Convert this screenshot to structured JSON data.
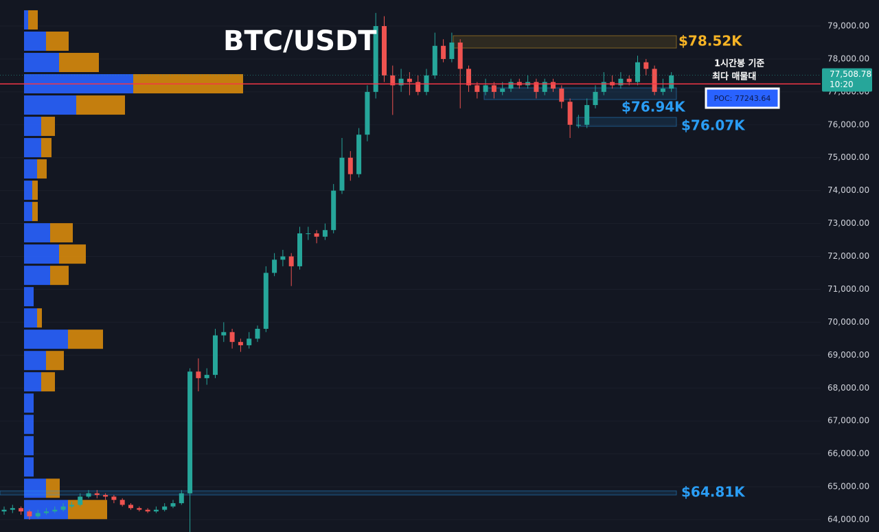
{
  "chart_data": {
    "type": "candlestick",
    "title": "BTC/USDT",
    "annotation": [
      "1시간봉 기준",
      "최다 매물대"
    ],
    "ylim": [
      64000,
      79000
    ],
    "yticks": [
      {
        "value": 79000,
        "label": "79,000.00"
      },
      {
        "value": 78000,
        "label": "78,000.00"
      },
      {
        "value": 77000,
        "label": "77,000.00"
      },
      {
        "value": 76000,
        "label": "76,000.00"
      },
      {
        "value": 75000,
        "label": "75,000.00"
      },
      {
        "value": 74000,
        "label": "74,000.00"
      },
      {
        "value": 73000,
        "label": "73,000.00"
      },
      {
        "value": 72000,
        "label": "72,000.00"
      },
      {
        "value": 71000,
        "label": "71,000.00"
      },
      {
        "value": 70000,
        "label": "70,000.00"
      },
      {
        "value": 69000,
        "label": "69,000.00"
      },
      {
        "value": 68000,
        "label": "68,000.00"
      },
      {
        "value": 67000,
        "label": "67,000.00"
      },
      {
        "value": 66000,
        "label": "66,000.00"
      },
      {
        "value": 65000,
        "label": "65,000.00"
      },
      {
        "value": 64000,
        "label": "64,000.00"
      }
    ],
    "up_color": "#26a69a",
    "down_color": "#ef5350",
    "candles": [
      [
        64250,
        64400,
        64150,
        64300
      ],
      [
        64300,
        64450,
        64200,
        64350
      ],
      [
        64350,
        64400,
        64150,
        64250
      ],
      [
        64250,
        64300,
        64000,
        64100
      ],
      [
        64100,
        64300,
        64050,
        64200
      ],
      [
        64200,
        64350,
        64150,
        64250
      ],
      [
        64250,
        64400,
        64200,
        64300
      ],
      [
        64300,
        64500,
        64250,
        64400
      ],
      [
        64400,
        64550,
        64350,
        64450
      ],
      [
        64450,
        64800,
        64400,
        64700
      ],
      [
        64700,
        64900,
        64650,
        64800
      ],
      [
        64800,
        64900,
        64650,
        64750
      ],
      [
        64750,
        64800,
        64600,
        64700
      ],
      [
        64700,
        64750,
        64500,
        64600
      ],
      [
        64600,
        64650,
        64400,
        64450
      ],
      [
        64450,
        64500,
        64300,
        64350
      ],
      [
        64350,
        64400,
        64250,
        64300
      ],
      [
        64300,
        64350,
        64200,
        64250
      ],
      [
        64250,
        64400,
        64200,
        64300
      ],
      [
        64300,
        64500,
        64250,
        64400
      ],
      [
        64400,
        64600,
        64350,
        64500
      ],
      [
        64500,
        64900,
        64450,
        64800
      ],
      [
        64800,
        68600,
        63500,
        68500
      ],
      [
        68500,
        68900,
        67900,
        68300
      ],
      [
        68300,
        68600,
        68100,
        68400
      ],
      [
        68400,
        69800,
        68300,
        69600
      ],
      [
        69600,
        70000,
        69400,
        69700
      ],
      [
        69700,
        69800,
        69200,
        69400
      ],
      [
        69400,
        69500,
        69100,
        69300
      ],
      [
        69300,
        69700,
        69200,
        69500
      ],
      [
        69500,
        69900,
        69400,
        69800
      ],
      [
        69800,
        71700,
        69700,
        71500
      ],
      [
        71500,
        72100,
        71400,
        71900
      ],
      [
        71900,
        72200,
        71700,
        72000
      ],
      [
        72000,
        72100,
        71100,
        71700
      ],
      [
        71700,
        72900,
        71600,
        72700
      ],
      [
        72700,
        72900,
        72500,
        72700
      ],
      [
        72700,
        72800,
        72400,
        72600
      ],
      [
        72600,
        73000,
        72500,
        72800
      ],
      [
        72800,
        74200,
        72700,
        74000
      ],
      [
        74000,
        75600,
        73900,
        75000
      ],
      [
        75000,
        75200,
        74300,
        74500
      ],
      [
        74500,
        75900,
        74400,
        75700
      ],
      [
        75700,
        77200,
        75500,
        77000
      ],
      [
        77000,
        79400,
        76800,
        79000
      ],
      [
        79000,
        79300,
        77300,
        77500
      ],
      [
        77500,
        77800,
        76300,
        77200
      ],
      [
        77200,
        77700,
        77000,
        77400
      ],
      [
        77400,
        77600,
        76900,
        77300
      ],
      [
        77300,
        77500,
        76900,
        77000
      ],
      [
        77000,
        77700,
        76900,
        77500
      ],
      [
        77500,
        78800,
        77400,
        78400
      ],
      [
        78400,
        78600,
        77900,
        78000
      ],
      [
        78000,
        78800,
        77900,
        78500
      ],
      [
        78500,
        78600,
        76500,
        77700
      ],
      [
        77700,
        77800,
        77000,
        77200
      ],
      [
        77200,
        77300,
        76800,
        77000
      ],
      [
        77000,
        77400,
        76900,
        77200
      ],
      [
        77200,
        77300,
        76800,
        77000
      ],
      [
        77000,
        77300,
        76900,
        77100
      ],
      [
        77100,
        77400,
        77000,
        77300
      ],
      [
        77300,
        77400,
        77100,
        77200
      ],
      [
        77200,
        77500,
        77100,
        77300
      ],
      [
        77300,
        77400,
        76800,
        77000
      ],
      [
        77000,
        77400,
        76900,
        77300
      ],
      [
        77300,
        77400,
        77000,
        77100
      ],
      [
        77100,
        77200,
        76500,
        76700
      ],
      [
        76700,
        76800,
        75600,
        76000
      ],
      [
        76000,
        76300,
        75900,
        76000
      ],
      [
        76000,
        76800,
        75900,
        76600
      ],
      [
        76600,
        77200,
        76500,
        77000
      ],
      [
        77000,
        77600,
        76900,
        77300
      ],
      [
        77300,
        77500,
        77100,
        77200
      ],
      [
        77200,
        77600,
        77100,
        77400
      ],
      [
        77400,
        77500,
        77200,
        77300
      ],
      [
        77300,
        78100,
        77200,
        77900
      ],
      [
        77900,
        78000,
        77500,
        77700
      ],
      [
        77700,
        77800,
        76900,
        77000
      ],
      [
        77000,
        77400,
        76900,
        77100
      ],
      [
        77100,
        77600,
        77000,
        77500
      ]
    ],
    "profile": {
      "levels": [
        79188,
        78541,
        77894,
        77247,
        76600,
        75953,
        75306,
        74659,
        74012,
        73365,
        72718,
        72071,
        71424,
        70777,
        70130,
        69483,
        68836,
        68189,
        67542,
        66895,
        66248,
        65601,
        64954,
        64307
      ],
      "series": [
        {
          "color": "#2962ff",
          "values": [
            6,
            32,
            51,
            159,
            76,
            25,
            25,
            19,
            12,
            12,
            38,
            51,
            38,
            14,
            19,
            64,
            32,
            25,
            14,
            14,
            14,
            14,
            32,
            64
          ]
        },
        {
          "color": "#d88a0c",
          "values": [
            14,
            33,
            58,
            160,
            71,
            20,
            15,
            14,
            8,
            8,
            33,
            39,
            27,
            0,
            7,
            51,
            26,
            20,
            0,
            0,
            0,
            0,
            20,
            57
          ]
        }
      ]
    },
    "poc": {
      "value": 77243.64,
      "label": "POC: 77243.64",
      "color": "#f23645"
    },
    "last_price": {
      "value": 77508.78,
      "label": "77,508.78"
    },
    "time": "10:20",
    "zones": [
      {
        "label": "$78.52K",
        "color": "#f5b325",
        "range": [
          78332,
          78708
        ]
      },
      {
        "label": "$76.94K",
        "color": "#2a9df4",
        "range": [
          76768,
          77122
        ]
      },
      {
        "label": "$76.07K",
        "color": "#2a9df4",
        "range": [
          75954,
          76225
        ]
      },
      {
        "label": "$64.81K",
        "color": "#2a9df4",
        "range": [
          64750,
          64875
        ]
      }
    ]
  }
}
